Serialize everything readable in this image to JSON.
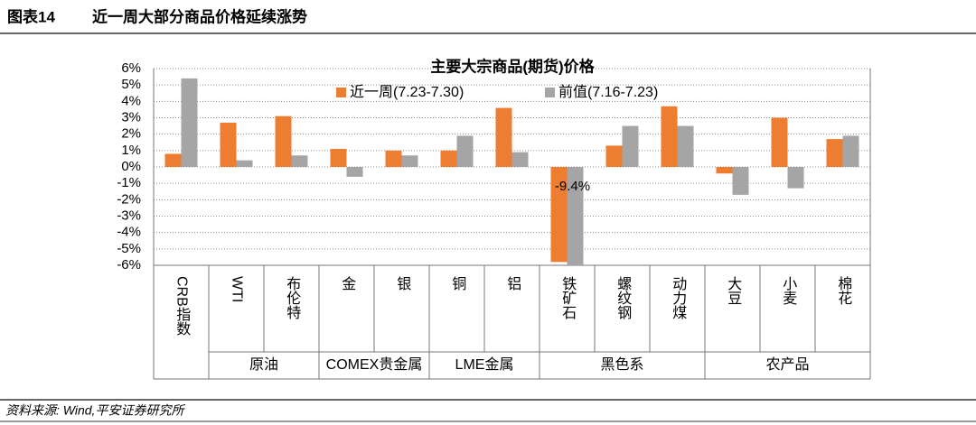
{
  "header": {
    "figure": "图表14",
    "title": "近一周大部分商品价格延续涨势"
  },
  "chart_data": {
    "type": "bar",
    "title": "主要大宗商品(期货)价格",
    "categories": [
      "CRB指数",
      "WTI",
      "布伦特",
      "金",
      "银",
      "铜",
      "铝",
      "铁矿石",
      "螺纹钢",
      "动力煤",
      "大豆",
      "小麦",
      "棉花"
    ],
    "category_groups": [
      null,
      "原油",
      "原油",
      "COMEX贵金属",
      "COMEX贵金属",
      "LME金属",
      "LME金属",
      "黑色系",
      "黑色系",
      "黑色系",
      "农产品",
      "农产品",
      "农产品"
    ],
    "series": [
      {
        "name": "近一周(7.23-7.30)",
        "color": "#ED7D31",
        "values": [
          0.8,
          2.7,
          3.1,
          1.1,
          1.0,
          1.0,
          3.6,
          -5.8,
          1.3,
          3.7,
          -0.4,
          3.0,
          1.7
        ]
      },
      {
        "name": "前值(7.16-7.23)",
        "color": "#A5A5A5",
        "values": [
          5.4,
          0.4,
          0.7,
          -0.6,
          0.7,
          1.9,
          0.9,
          -9.4,
          2.5,
          2.5,
          -1.7,
          -1.3,
          1.9
        ],
        "value_labels": [
          null,
          null,
          null,
          null,
          null,
          null,
          null,
          "-9.4%",
          null,
          null,
          null,
          null,
          null
        ]
      }
    ],
    "ylim": [
      -6,
      6
    ],
    "yticks": [
      {
        "value": -6,
        "label": "-6%"
      },
      {
        "value": -5,
        "label": "-5%"
      },
      {
        "value": -4,
        "label": "-4%"
      },
      {
        "value": -3,
        "label": "-3%"
      },
      {
        "value": -2,
        "label": "-2%"
      },
      {
        "value": -1,
        "label": "-1%"
      },
      {
        "value": 0,
        "label": "0%"
      },
      {
        "value": 1,
        "label": "1%"
      },
      {
        "value": 2,
        "label": "2%"
      },
      {
        "value": 3,
        "label": "3%"
      },
      {
        "value": 4,
        "label": "4%"
      },
      {
        "value": 5,
        "label": "5%"
      },
      {
        "value": 6,
        "label": "6%"
      }
    ],
    "grid": true
  },
  "footer": {
    "source": "资料来源: Wind,平安证券研究所"
  }
}
